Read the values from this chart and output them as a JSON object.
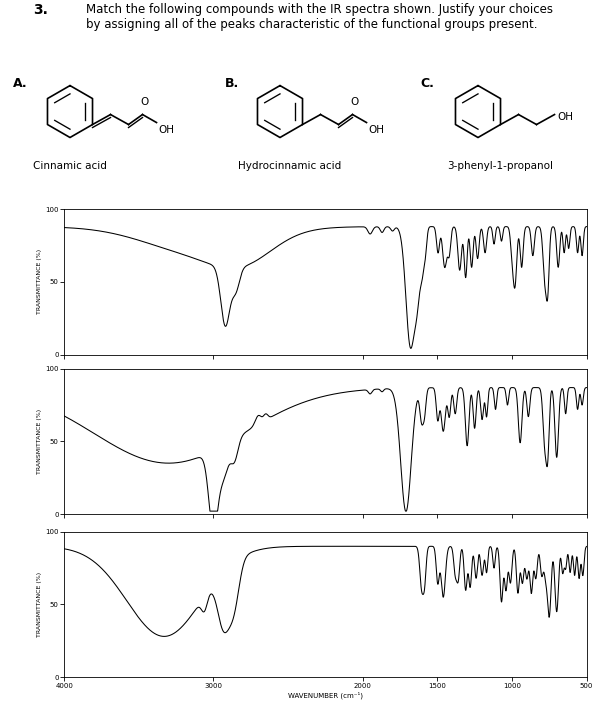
{
  "title_number": "3.",
  "title_text": "Match the following compounds with the IR spectra shown. Justify your choices\nby assigning all of the peaks characteristic of the functional groups present.",
  "compound_names": [
    "Cinnamic acid",
    "Hydrocinnamic acid",
    "3-phenyl-1-propanol"
  ],
  "ylabel": "TRANSMITTANCE (%)",
  "xlabel": "WAVENUMBER (cm⁻¹)",
  "xlim": [
    4000,
    500
  ],
  "ylim": [
    0,
    100
  ],
  "yticks": [
    0,
    50,
    100
  ],
  "xticks": [
    4000,
    3000,
    2000,
    1500,
    1000,
    500
  ],
  "background_color": "#ffffff",
  "line_color": "#000000"
}
